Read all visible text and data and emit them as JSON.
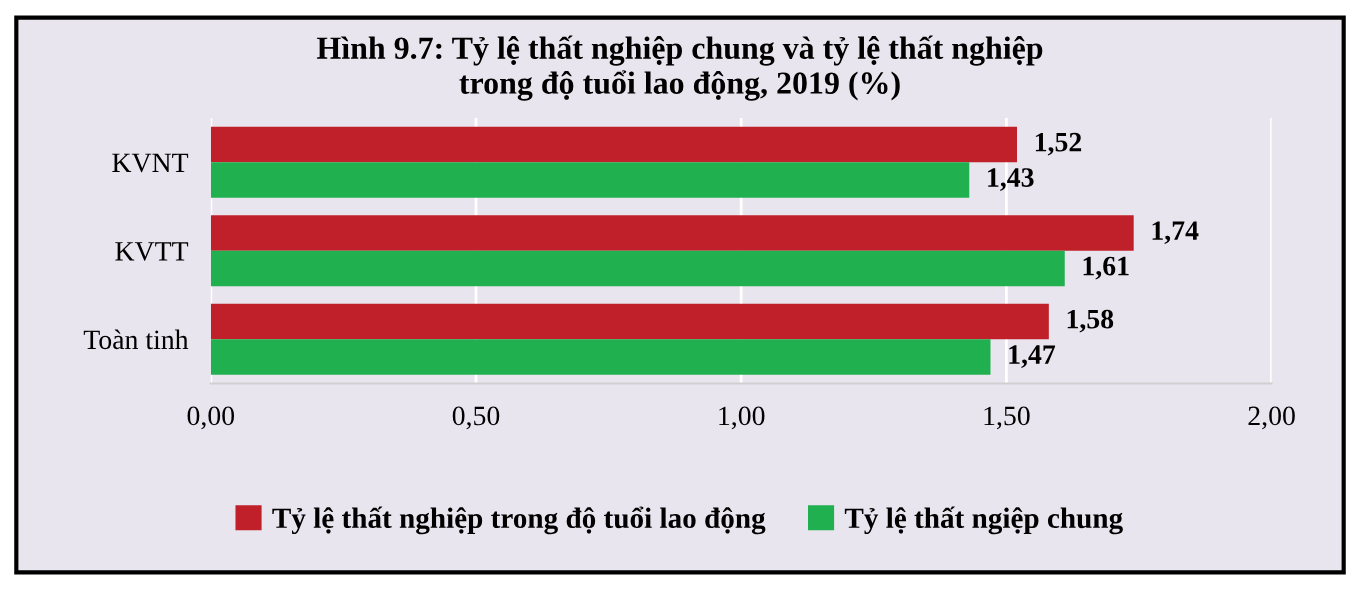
{
  "chart_data": {
    "type": "bar",
    "orientation": "horizontal",
    "title": "Hình 9.7: Tỷ lệ thất nghiệp chung và tỷ lệ thất nghiệp\ntrong độ tuổi lao động, 2019 (%)",
    "categories": [
      "KVNT",
      "KVTT",
      "Toàn tinh"
    ],
    "series": [
      {
        "name": "Tỷ lệ thất nghiệp trong độ tuổi lao động",
        "color": "#c0202a",
        "values": [
          1.52,
          1.74,
          1.58
        ],
        "value_labels": [
          "1,52",
          "1,74",
          "1,58"
        ]
      },
      {
        "name": "Tỷ lệ thất ngiệp chung",
        "color": "#20b050",
        "values": [
          1.43,
          1.61,
          1.47
        ],
        "value_labels": [
          "1,43",
          "1,61",
          "1,47"
        ]
      }
    ],
    "xlim": [
      0,
      2
    ],
    "xticks": [
      {
        "value": 0,
        "label": "0,00"
      },
      {
        "value": 0.5,
        "label": "0,50"
      },
      {
        "value": 1,
        "label": "1,00"
      },
      {
        "value": 1.5,
        "label": "1,50"
      },
      {
        "value": 2,
        "label": "2,00"
      }
    ],
    "grid": "x",
    "legend": "bottom"
  }
}
